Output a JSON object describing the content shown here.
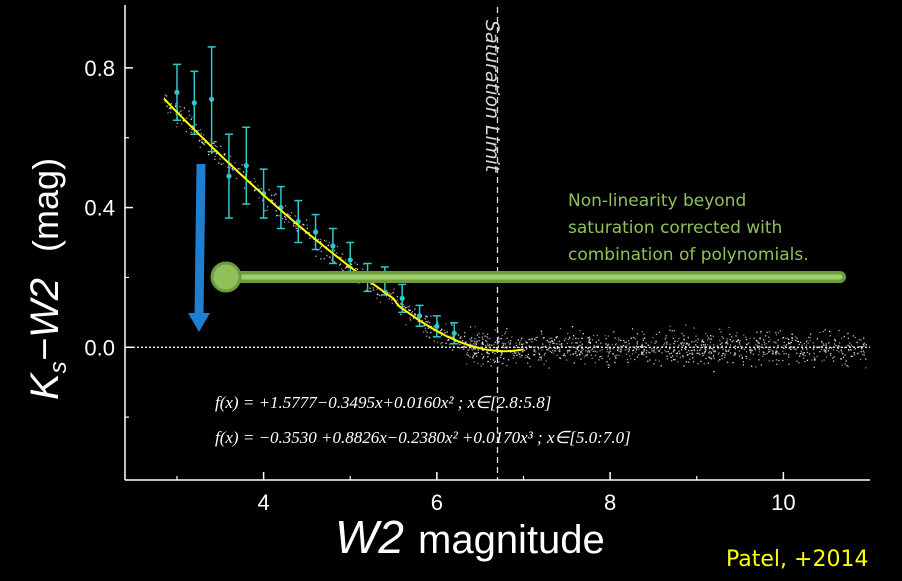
{
  "chart_data": {
    "type": "scatter",
    "xlabel": {
      "italic": "W2",
      "rest": "magnitude"
    },
    "ylabel": {
      "main": "K",
      "sub": "s",
      "rest": "−W2",
      "unit": "(mag)"
    },
    "xlim": [
      2.4,
      11.0
    ],
    "ylim": [
      -0.38,
      0.98
    ],
    "xticks": [
      4,
      6,
      8,
      10
    ],
    "xtick_labels": [
      "4",
      "6",
      "8",
      "10"
    ],
    "yticks": [
      0.8,
      0.4,
      0.0
    ],
    "ytick_labels": [
      "0.8",
      "0.4",
      "0.0"
    ],
    "grid": false,
    "reference_line_y": 0.0,
    "saturation_limit": {
      "x": 6.7,
      "label": "Saturation Limit"
    },
    "binned_points": {
      "x": [
        3.0,
        3.2,
        3.4,
        3.6,
        3.8,
        4.0,
        4.2,
        4.4,
        4.6,
        4.8,
        5.0,
        5.2,
        5.4,
        5.6,
        5.8,
        6.0,
        6.2
      ],
      "y": [
        0.73,
        0.7,
        0.71,
        0.49,
        0.52,
        0.44,
        0.4,
        0.36,
        0.33,
        0.29,
        0.25,
        0.2,
        0.19,
        0.14,
        0.09,
        0.06,
        0.04
      ],
      "err": [
        0.08,
        0.09,
        0.15,
        0.12,
        0.11,
        0.07,
        0.06,
        0.06,
        0.05,
        0.05,
        0.05,
        0.04,
        0.04,
        0.04,
        0.03,
        0.03,
        0.03
      ]
    },
    "fit": {
      "poly1": {
        "coeffs": [
          1.5777,
          -0.3495,
          0.016
        ],
        "range": [
          2.8,
          5.8
        ]
      },
      "poly2": {
        "coeffs": [
          -0.353,
          0.8826,
          -0.238,
          0.017
        ],
        "range": [
          5.0,
          7.0
        ]
      }
    },
    "equations": [
      "f(x) = +1.5777−0.3495x+0.0160x² ; x∈[2.8:5.8]",
      "f(x) = −0.3530 +0.8826x−0.2380x² +0.0170x³ ; x∈[5.0:7.0]"
    ],
    "annotation_lines": [
      "Non-linearity beyond",
      "saturation corrected with",
      "combination of polynomials."
    ],
    "credit": "Patel, +2014"
  },
  "colors": {
    "background": "#000000",
    "fit": "#ffff00",
    "points": "#2fc8c8",
    "scatter": "#ffffff",
    "arrow": "#1e7fd0",
    "annotation_bar": "#8fc05a"
  }
}
